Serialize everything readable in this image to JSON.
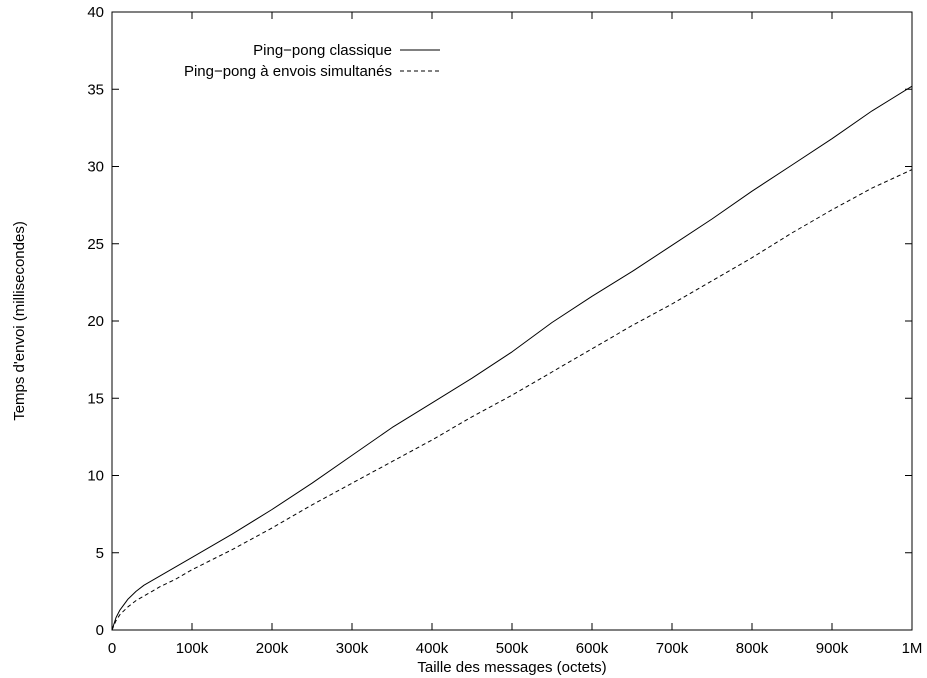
{
  "chart_data": {
    "type": "line",
    "title": "",
    "xlabel": "Taille des messages (octets)",
    "ylabel": "Temps d'envoi (millisecondes)",
    "xlim": [
      0,
      1000000
    ],
    "ylim": [
      0,
      40
    ],
    "x_ticks": [
      {
        "value": 0,
        "label": "0"
      },
      {
        "value": 100000,
        "label": "100k"
      },
      {
        "value": 200000,
        "label": "200k"
      },
      {
        "value": 300000,
        "label": "300k"
      },
      {
        "value": 400000,
        "label": "400k"
      },
      {
        "value": 500000,
        "label": "500k"
      },
      {
        "value": 600000,
        "label": "600k"
      },
      {
        "value": 700000,
        "label": "700k"
      },
      {
        "value": 800000,
        "label": "800k"
      },
      {
        "value": 900000,
        "label": "900k"
      },
      {
        "value": 1000000,
        "label": "1M"
      }
    ],
    "y_ticks": [
      {
        "value": 0,
        "label": "0"
      },
      {
        "value": 5,
        "label": "5"
      },
      {
        "value": 10,
        "label": "10"
      },
      {
        "value": 15,
        "label": "15"
      },
      {
        "value": 20,
        "label": "20"
      },
      {
        "value": 25,
        "label": "25"
      },
      {
        "value": 30,
        "label": "30"
      },
      {
        "value": 35,
        "label": "35"
      },
      {
        "value": 40,
        "label": "40"
      }
    ],
    "grid": false,
    "legend_position": "top-left",
    "series": [
      {
        "name": "Ping−pong classique",
        "style": "solid",
        "color": "#000000",
        "x": [
          0,
          5000,
          10000,
          20000,
          30000,
          40000,
          50000,
          60000,
          80000,
          100000,
          150000,
          200000,
          250000,
          300000,
          350000,
          400000,
          450000,
          500000,
          550000,
          600000,
          650000,
          700000,
          750000,
          800000,
          850000,
          900000,
          950000,
          1000000
        ],
        "y": [
          0,
          0.8,
          1.3,
          2.0,
          2.5,
          2.9,
          3.2,
          3.5,
          4.1,
          4.7,
          6.2,
          7.8,
          9.5,
          11.3,
          13.1,
          14.7,
          16.3,
          18.0,
          19.9,
          21.6,
          23.2,
          24.9,
          26.6,
          28.4,
          30.1,
          31.8,
          33.6,
          35.2
        ]
      },
      {
        "name": "Ping−pong à envois simultanés",
        "style": "dashed",
        "color": "#000000",
        "x": [
          0,
          5000,
          10000,
          20000,
          30000,
          40000,
          50000,
          60000,
          80000,
          100000,
          150000,
          200000,
          250000,
          300000,
          350000,
          400000,
          450000,
          500000,
          550000,
          600000,
          650000,
          700000,
          750000,
          800000,
          850000,
          900000,
          950000,
          1000000
        ],
        "y": [
          0,
          0.6,
          1.0,
          1.5,
          1.9,
          2.2,
          2.5,
          2.8,
          3.3,
          3.9,
          5.2,
          6.6,
          8.1,
          9.5,
          10.9,
          12.3,
          13.8,
          15.2,
          16.7,
          18.2,
          19.7,
          21.1,
          22.6,
          24.1,
          25.7,
          27.2,
          28.6,
          29.8
        ]
      }
    ]
  }
}
